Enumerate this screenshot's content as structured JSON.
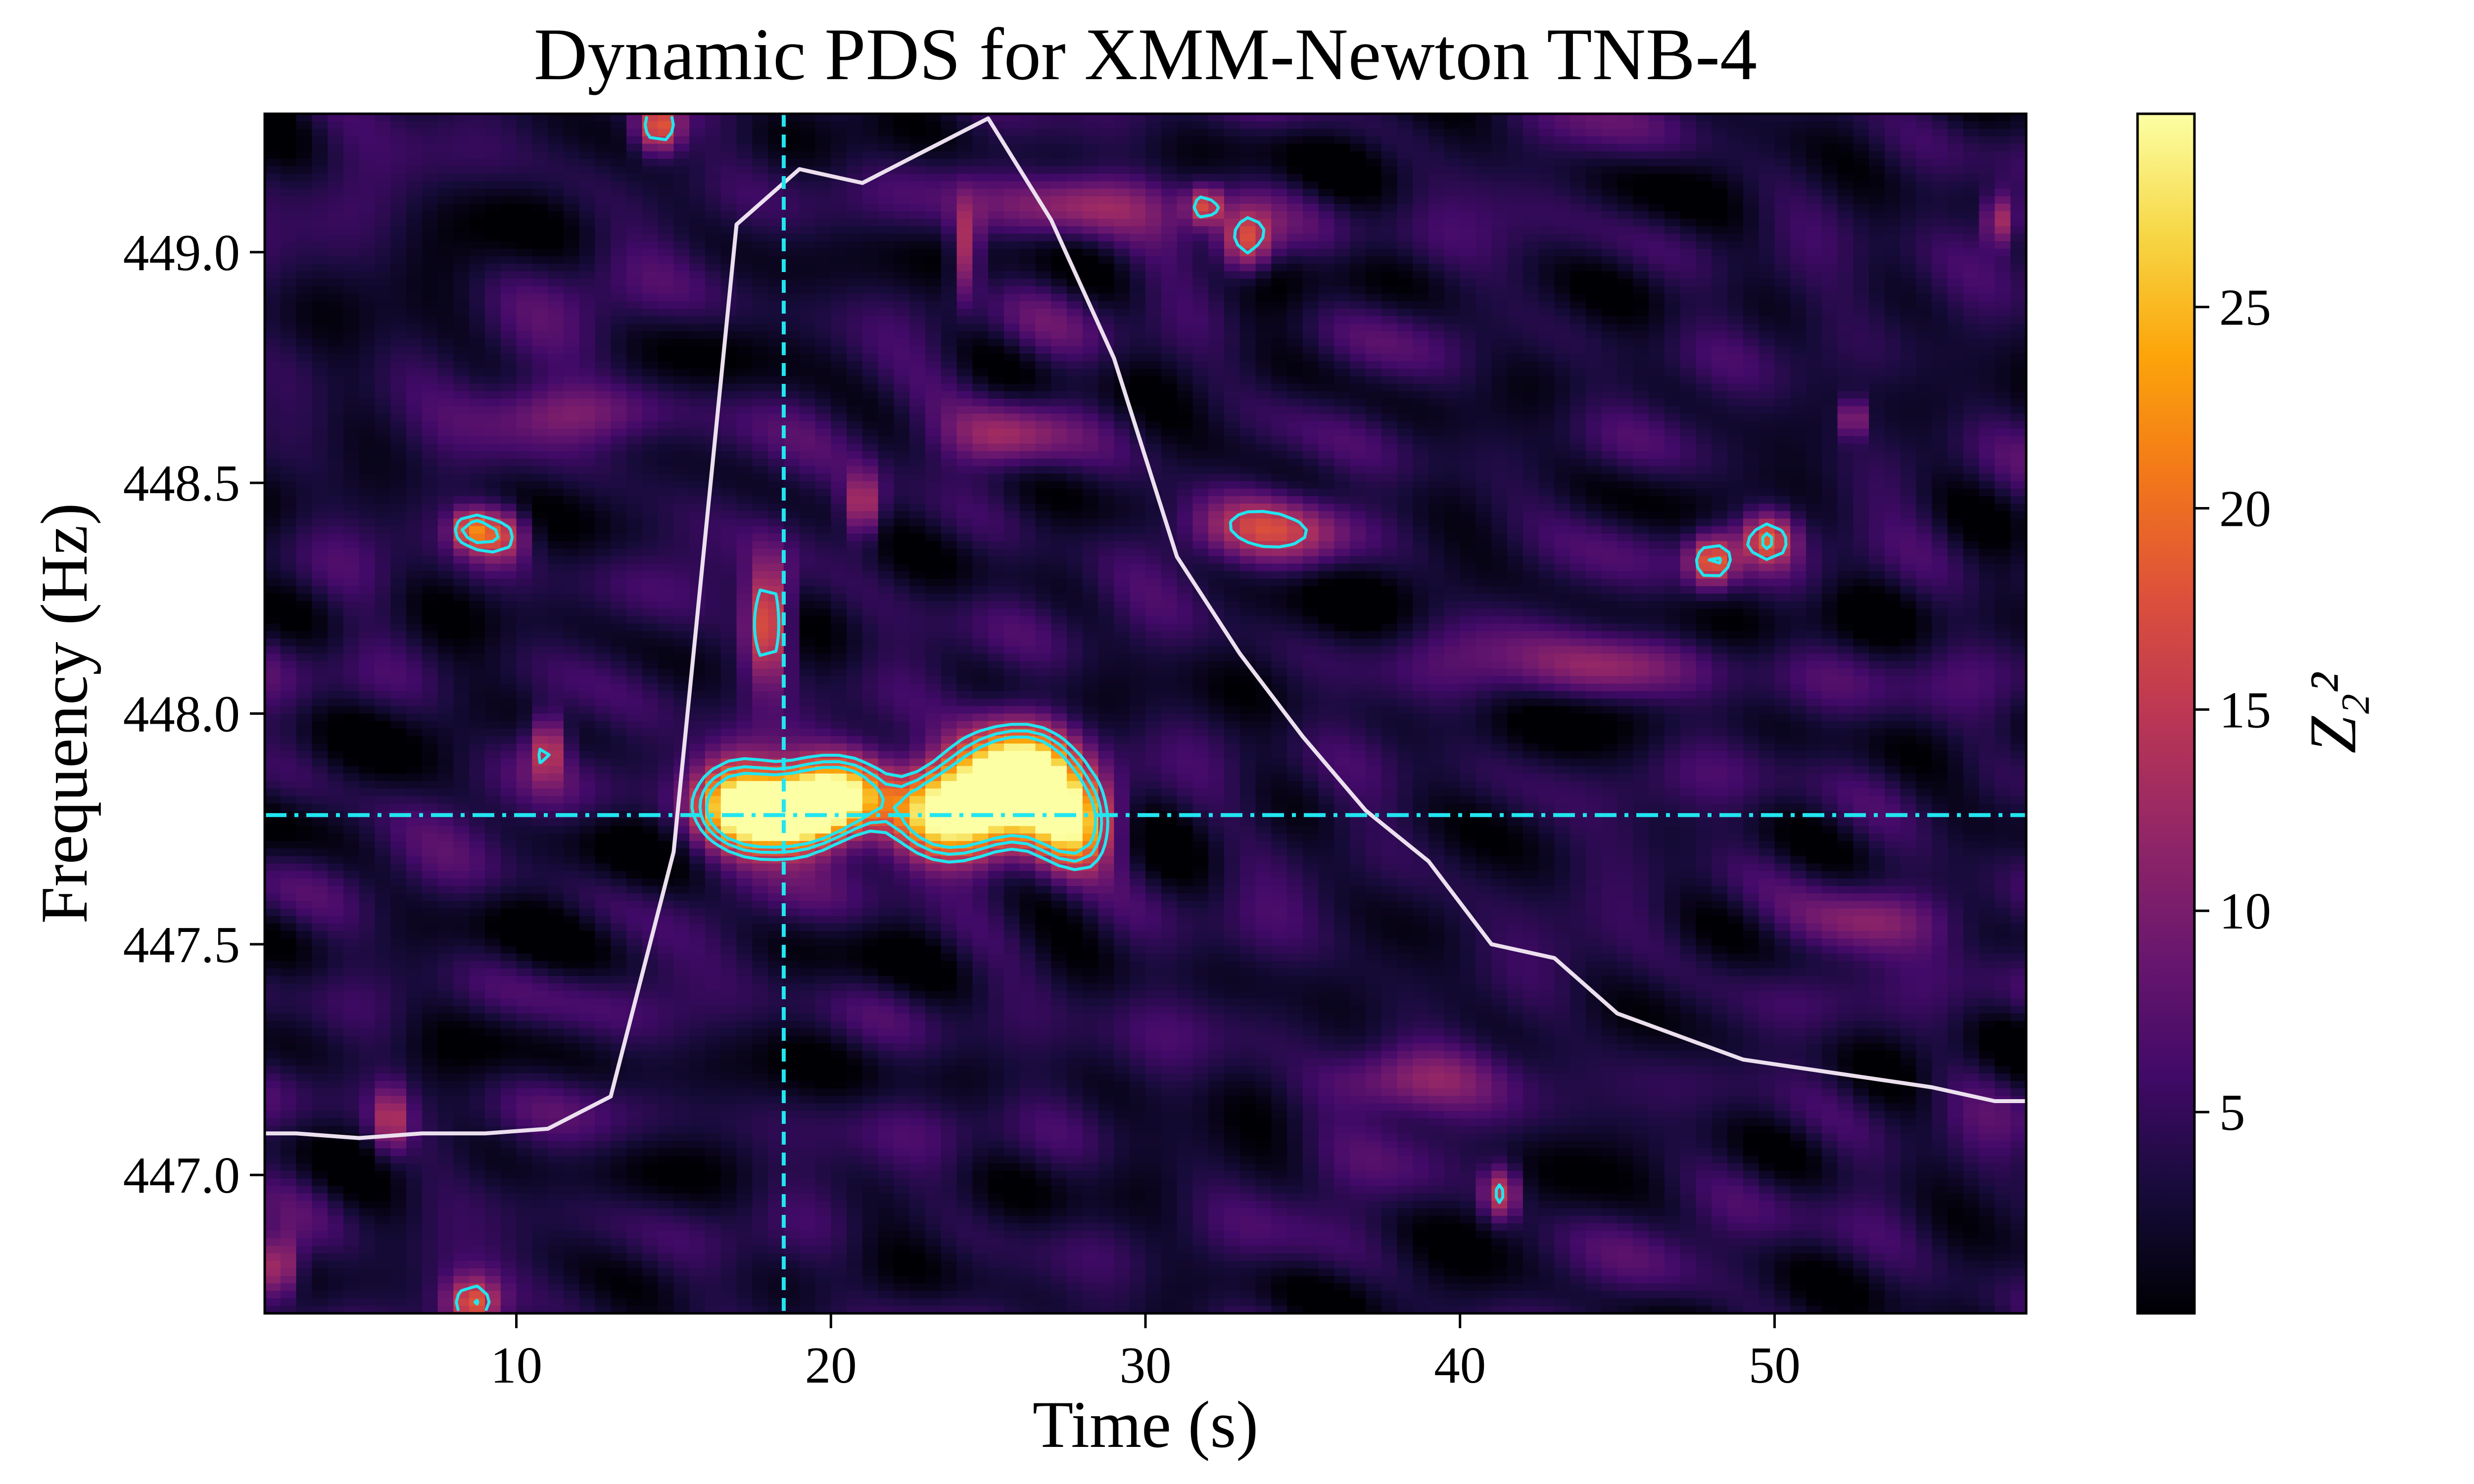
{
  "chart_data": {
    "type": "heatmap",
    "title": "Dynamic PDS for XMM-Newton TNB-4",
    "xlabel": "Time (s)",
    "ylabel": "Frequency (Hz)",
    "colorbar_label": "Z₂²",
    "xlim": [
      2,
      58
    ],
    "ylim": [
      446.7,
      449.3
    ],
    "x_ticks": [
      {
        "value": 10,
        "label": "10"
      },
      {
        "value": 20,
        "label": "20"
      },
      {
        "value": 30,
        "label": "30"
      },
      {
        "value": 40,
        "label": "40"
      },
      {
        "value": 50,
        "label": "50"
      }
    ],
    "y_ticks": [
      {
        "value": 447.0,
        "label": "447.0"
      },
      {
        "value": 447.5,
        "label": "447.5"
      },
      {
        "value": 448.0,
        "label": "448.0"
      },
      {
        "value": 448.5,
        "label": "448.5"
      },
      {
        "value": 449.0,
        "label": "449.0"
      }
    ],
    "colorbar": {
      "colormap": "inferno",
      "range": [
        0,
        29.8
      ],
      "ticks": [
        {
          "value": 5,
          "label": "5"
        },
        {
          "value": 10,
          "label": "10"
        },
        {
          "value": 15,
          "label": "15"
        },
        {
          "value": 20,
          "label": "20"
        },
        {
          "value": 25,
          "label": "25"
        }
      ]
    },
    "reference_lines": {
      "vertical_time": 18.5,
      "horizontal_frequency": 447.78,
      "color": "#22e5f0"
    },
    "light_curve_overlay": {
      "color": "#ece0ee",
      "points": [
        [
          2,
          447.09
        ],
        [
          3,
          447.09
        ],
        [
          5,
          447.08
        ],
        [
          7,
          447.09
        ],
        [
          9,
          447.09
        ],
        [
          11,
          447.1
        ],
        [
          13,
          447.17
        ],
        [
          15,
          447.7
        ],
        [
          17,
          449.06
        ],
        [
          19,
          449.18
        ],
        [
          21,
          449.15
        ],
        [
          23,
          449.22
        ],
        [
          25,
          449.29
        ],
        [
          27,
          449.07
        ],
        [
          29,
          448.77
        ],
        [
          31,
          448.34
        ],
        [
          33,
          448.13
        ],
        [
          35,
          447.95
        ],
        [
          37,
          447.79
        ],
        [
          39,
          447.68
        ],
        [
          41,
          447.5
        ],
        [
          43,
          447.47
        ],
        [
          45,
          447.35
        ],
        [
          47,
          447.3
        ],
        [
          49,
          447.25
        ],
        [
          51,
          447.23
        ],
        [
          53,
          447.21
        ],
        [
          55,
          447.19
        ],
        [
          57,
          447.16
        ],
        [
          58,
          447.16
        ]
      ]
    },
    "features": [
      {
        "t": 18.2,
        "f": 447.78,
        "z": 29,
        "ft": 1.2,
        "ff": 0.05
      },
      {
        "t": 17.0,
        "f": 447.82,
        "z": 22,
        "ft": 1.0,
        "ff": 0.07
      },
      {
        "t": 19.4,
        "f": 447.8,
        "z": 21,
        "ft": 0.9,
        "ff": 0.06
      },
      {
        "t": 20.6,
        "f": 447.83,
        "z": 18,
        "ft": 0.9,
        "ff": 0.06
      },
      {
        "t": 23.6,
        "f": 447.78,
        "z": 24,
        "ft": 1.3,
        "ff": 0.07
      },
      {
        "t": 25.0,
        "f": 447.85,
        "z": 22,
        "ft": 1.2,
        "ff": 0.08
      },
      {
        "t": 26.4,
        "f": 447.86,
        "z": 23,
        "ft": 1.0,
        "ff": 0.08
      },
      {
        "t": 27.7,
        "f": 447.76,
        "z": 23,
        "ft": 0.9,
        "ff": 0.07
      },
      {
        "t": 18.0,
        "f": 448.2,
        "z": 18,
        "ft": 0.5,
        "ff": 0.09
      },
      {
        "t": 9.5,
        "f": 448.39,
        "z": 14,
        "ft": 0.6,
        "ff": 0.04
      },
      {
        "t": 8.5,
        "f": 448.4,
        "z": 13,
        "ft": 0.4,
        "ff": 0.03
      },
      {
        "t": 11.0,
        "f": 447.93,
        "z": 12,
        "ft": 0.4,
        "ff": 0.05
      },
      {
        "t": 33.2,
        "f": 449.02,
        "z": 15,
        "ft": 0.6,
        "ff": 0.05
      },
      {
        "t": 31.9,
        "f": 449.1,
        "z": 13,
        "ft": 0.4,
        "ff": 0.03
      },
      {
        "t": 24.3,
        "f": 449.0,
        "z": 12,
        "ft": 0.3,
        "ff": 0.07
      },
      {
        "t": 48.0,
        "f": 448.33,
        "z": 15,
        "ft": 0.5,
        "ff": 0.04
      },
      {
        "t": 49.8,
        "f": 448.38,
        "z": 14,
        "ft": 0.6,
        "ff": 0.04
      },
      {
        "t": 41.3,
        "f": 446.96,
        "z": 13,
        "ft": 0.4,
        "ff": 0.04
      },
      {
        "t": 8.6,
        "f": 446.72,
        "z": 14,
        "ft": 0.6,
        "ff": 0.04
      },
      {
        "t": 2.4,
        "f": 446.8,
        "z": 15,
        "ft": 0.5,
        "ff": 0.05
      },
      {
        "t": 14.5,
        "f": 449.27,
        "z": 16,
        "ft": 0.5,
        "ff": 0.04
      },
      {
        "t": 57.2,
        "f": 449.07,
        "z": 12,
        "ft": 0.4,
        "ff": 0.04
      },
      {
        "t": 52.5,
        "f": 448.64,
        "z": 10,
        "ft": 0.3,
        "ff": 0.03
      },
      {
        "t": 21.0,
        "f": 448.45,
        "z": 12,
        "ft": 0.4,
        "ff": 0.05
      },
      {
        "t": 25.5,
        "f": 448.6,
        "z": 9,
        "ft": 1.5,
        "ff": 0.05
      },
      {
        "t": 6.0,
        "f": 447.12,
        "z": 10,
        "ft": 0.4,
        "ff": 0.05
      },
      {
        "t": 34.0,
        "f": 448.4,
        "z": 9,
        "ft": 2.0,
        "ff": 0.05
      },
      {
        "t": 45.0,
        "f": 448.1,
        "z": 8,
        "ft": 2.0,
        "ff": 0.05
      },
      {
        "t": 53.0,
        "f": 447.55,
        "z": 8,
        "ft": 2.0,
        "ff": 0.05
      },
      {
        "t": 12.0,
        "f": 448.65,
        "z": 8,
        "ft": 2.0,
        "ff": 0.05
      },
      {
        "t": 38.0,
        "f": 447.2,
        "z": 8,
        "ft": 2.0,
        "ff": 0.05
      },
      {
        "t": 28.0,
        "f": 449.1,
        "z": 9,
        "ft": 2.0,
        "ff": 0.05
      }
    ],
    "contour_levels": [
      14,
      18,
      22
    ]
  }
}
